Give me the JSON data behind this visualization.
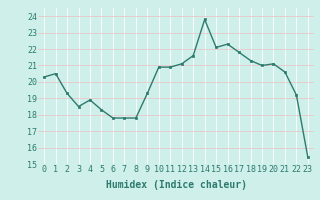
{
  "x": [
    0,
    1,
    2,
    3,
    4,
    5,
    6,
    7,
    8,
    9,
    10,
    11,
    12,
    13,
    14,
    15,
    16,
    17,
    18,
    19,
    20,
    21,
    22,
    23
  ],
  "y": [
    20.3,
    20.5,
    19.3,
    18.5,
    18.9,
    18.3,
    17.8,
    17.8,
    17.8,
    19.3,
    20.9,
    20.9,
    21.1,
    21.6,
    23.8,
    22.1,
    22.3,
    21.8,
    21.3,
    21.0,
    21.1,
    20.6,
    19.2,
    15.4
  ],
  "line_color": "#2d7a6e",
  "marker": "s",
  "markersize": 2,
  "linewidth": 1.0,
  "xlabel": "Humidex (Indice chaleur)",
  "ylim": [
    15,
    24.5
  ],
  "yticks": [
    15,
    16,
    17,
    18,
    19,
    20,
    21,
    22,
    23,
    24
  ],
  "xticks": [
    0,
    1,
    2,
    3,
    4,
    5,
    6,
    7,
    8,
    9,
    10,
    11,
    12,
    13,
    14,
    15,
    16,
    17,
    18,
    19,
    20,
    21,
    22,
    23
  ],
  "bg_color": "#cff0ea",
  "grid_color_major": "#b0d8d0",
  "grid_color_minor": "#b0d8d0",
  "xlabel_fontsize": 7,
  "tick_fontsize": 6
}
